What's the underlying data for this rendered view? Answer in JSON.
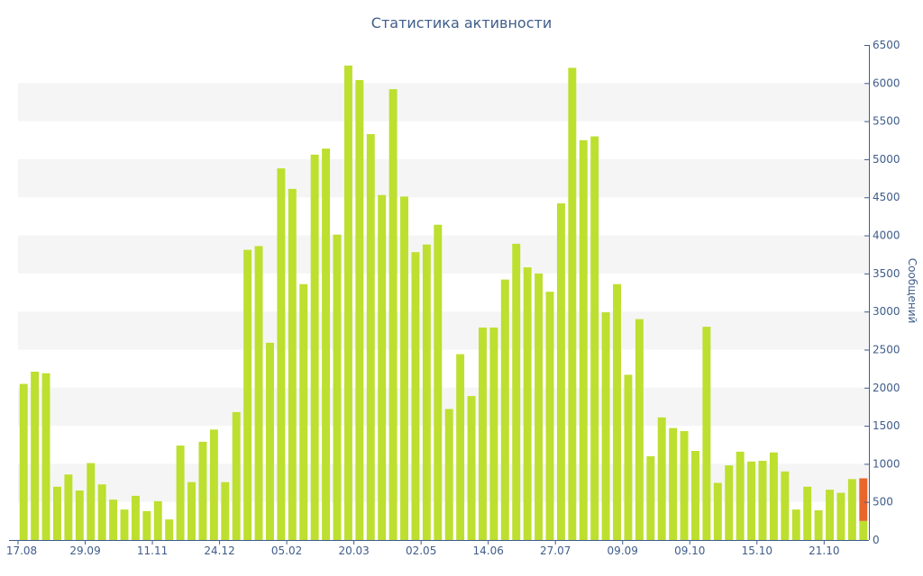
{
  "colors": {
    "bar": "#bddf2f",
    "highlight": "#e8662c",
    "band": "#f5f5f5",
    "axis": "#3f5d8a",
    "text": "#3f5d8a"
  },
  "chart_data": {
    "type": "bar",
    "title": "Статистика активности",
    "xlabel": "",
    "ylabel": "Сообщений",
    "ylim": [
      0,
      6500
    ],
    "y_ticks": [
      0,
      500,
      1000,
      1500,
      2000,
      2500,
      3000,
      3500,
      4000,
      4500,
      5000,
      5500,
      6000,
      6500
    ],
    "y_axis_side": "right",
    "grid": "alternating horizontal bands",
    "x_tick_labels": [
      {
        "index": 0,
        "label": "17.08"
      },
      {
        "index": 6,
        "label": "29.09"
      },
      {
        "index": 12,
        "label": "11.11"
      },
      {
        "index": 18,
        "label": "24.12"
      },
      {
        "index": 24,
        "label": "05.02"
      },
      {
        "index": 30,
        "label": "20.03"
      },
      {
        "index": 36,
        "label": "02.05"
      },
      {
        "index": 42,
        "label": "14.06"
      },
      {
        "index": 48,
        "label": "27.07"
      },
      {
        "index": 54,
        "label": "09.09"
      },
      {
        "index": 60,
        "label": "09.10"
      },
      {
        "index": 66,
        "label": "15.10"
      },
      {
        "index": 72,
        "label": "21.10"
      }
    ],
    "series": [
      {
        "values": [
          2050,
          2210,
          2190,
          700,
          860,
          650,
          1010,
          730,
          530,
          400,
          580,
          380,
          510,
          270,
          1240,
          760,
          1290,
          1450,
          760,
          1680,
          3810,
          3860,
          2590,
          4880,
          4610,
          3360,
          5060,
          5140,
          4010,
          6230,
          6040,
          5330,
          4530,
          5920,
          4510,
          3780,
          3880,
          4140,
          1720,
          2440,
          1890,
          2790,
          2790,
          3420,
          3890,
          3580,
          3500,
          3260,
          4420,
          6200,
          5250,
          5300,
          2990,
          3360,
          2170,
          2900,
          1100,
          1610,
          1470,
          1430,
          1170,
          2800,
          750,
          980,
          1160,
          1030,
          1040,
          1150,
          900,
          400,
          700,
          390,
          660,
          620,
          800,
          250
        ]
      },
      {
        "name_note": "last bar has orange upper segment",
        "values_note": "stacked on last bar",
        "stack_top_index": 75,
        "stack_top_value": 810
      }
    ]
  }
}
